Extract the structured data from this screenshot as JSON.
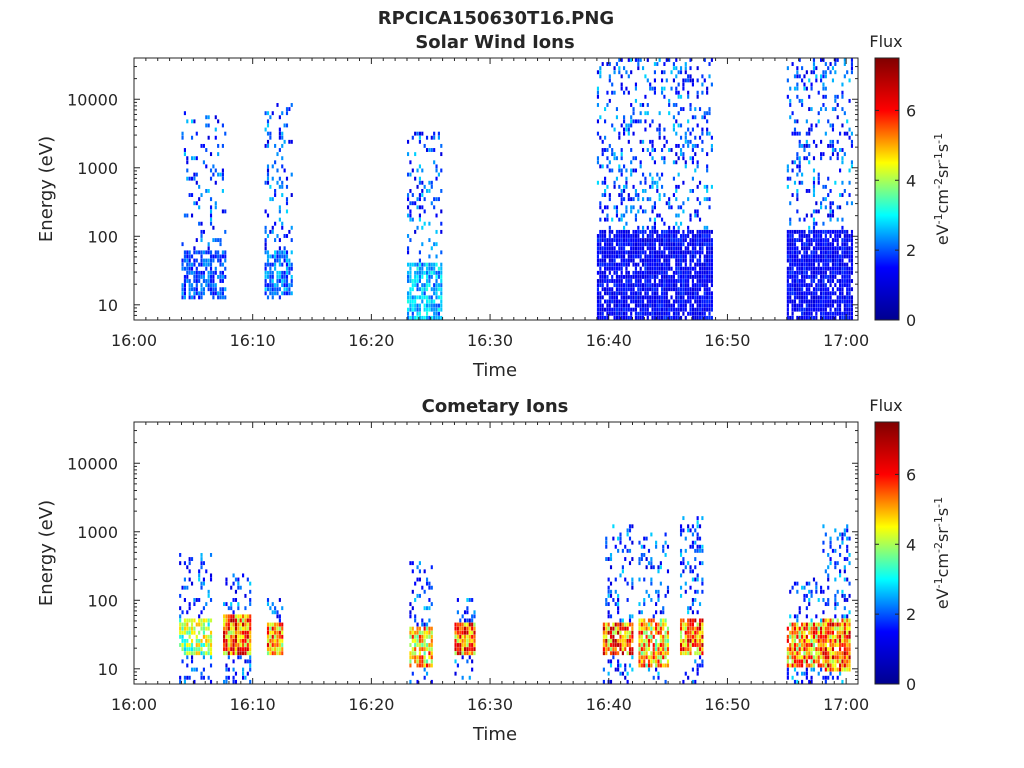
{
  "figure": {
    "filename": "RPCICA150630T16.PNG",
    "colorbar": {
      "label": "Flux",
      "unit_base": "eV",
      "unit_sup1": "-1",
      "unit_base2": "cm",
      "unit_sup2": "-2",
      "unit_base3": "sr",
      "unit_sup3": "-1",
      "unit_base4": "s",
      "unit_sup4": "-1",
      "ticks": [
        "0",
        "2",
        "4",
        "6"
      ],
      "range": [
        0,
        7.5
      ],
      "colormap": "jet",
      "colors": [
        "#00008f",
        "#0000ff",
        "#00ffff",
        "#ffff00",
        "#ff0000",
        "#800000"
      ]
    }
  },
  "chart_data": [
    {
      "type": "heatmap",
      "title": "Solar Wind Ions",
      "xlabel": "Time",
      "ylabel": "Energy (eV)",
      "x_ticks": [
        "16:00",
        "16:10",
        "16:20",
        "16:30",
        "16:40",
        "16:50",
        "17:00"
      ],
      "y_ticks": [
        "10",
        "100",
        "1000",
        "10000"
      ],
      "y_scale": "log",
      "ylim": [
        6,
        40000
      ],
      "xlim_minutes": [
        0,
        61
      ],
      "bursts": [
        {
          "t0": 4.0,
          "t1": 7.8,
          "emin": 12,
          "emax": 6000,
          "core_min": 10,
          "core_max": 60,
          "peak": 2.5,
          "density": 0.45
        },
        {
          "t0": 11.0,
          "t1": 13.2,
          "emin": 12,
          "emax": 8500,
          "core_min": 12,
          "core_max": 60,
          "peak": 2.8,
          "density": 0.5
        },
        {
          "t0": 23.0,
          "t1": 25.8,
          "emin": 6,
          "emax": 3000,
          "core_min": 6,
          "core_max": 40,
          "peak": 3.2,
          "density": 0.5
        },
        {
          "t0": 39.0,
          "t1": 48.8,
          "emin": 6,
          "emax": 38000,
          "core_min": 6,
          "core_max": 120,
          "peak": 1.8,
          "density": 0.6
        },
        {
          "t0": 55.0,
          "t1": 60.5,
          "emin": 6,
          "emax": 38000,
          "core_min": 6,
          "core_max": 120,
          "peak": 1.8,
          "density": 0.6
        }
      ]
    },
    {
      "type": "heatmap",
      "title": "Cometary Ions",
      "xlabel": "Time",
      "ylabel": "Energy (eV)",
      "x_ticks": [
        "16:00",
        "16:10",
        "16:20",
        "16:30",
        "16:40",
        "16:50",
        "17:00"
      ],
      "y_ticks": [
        "10",
        "100",
        "1000",
        "10000"
      ],
      "y_scale": "log",
      "ylim": [
        6,
        40000
      ],
      "xlim_minutes": [
        0,
        61
      ],
      "bursts": [
        {
          "t0": 3.8,
          "t1": 6.5,
          "emin": 6,
          "emax": 450,
          "core_min": 15,
          "core_max": 50,
          "peak": 5.0,
          "density": 0.55
        },
        {
          "t0": 7.5,
          "t1": 9.8,
          "emin": 6,
          "emax": 220,
          "core_min": 15,
          "core_max": 60,
          "peak": 7.0,
          "density": 0.75
        },
        {
          "t0": 11.2,
          "t1": 12.5,
          "emin": 15,
          "emax": 100,
          "core_min": 15,
          "core_max": 45,
          "peak": 6.5,
          "density": 0.75
        },
        {
          "t0": 23.2,
          "t1": 25.0,
          "emin": 6,
          "emax": 350,
          "core_min": 10,
          "core_max": 40,
          "peak": 6.2,
          "density": 0.6
        },
        {
          "t0": 27.0,
          "t1": 28.6,
          "emin": 6,
          "emax": 100,
          "core_min": 15,
          "core_max": 45,
          "peak": 7.0,
          "density": 0.75
        },
        {
          "t0": 39.5,
          "t1": 42.0,
          "emin": 6,
          "emax": 1200,
          "core_min": 15,
          "core_max": 45,
          "peak": 7.0,
          "density": 0.65
        },
        {
          "t0": 42.5,
          "t1": 45.0,
          "emin": 6,
          "emax": 900,
          "core_min": 10,
          "core_max": 50,
          "peak": 6.2,
          "density": 0.6
        },
        {
          "t0": 46.0,
          "t1": 48.0,
          "emin": 6,
          "emax": 1600,
          "core_min": 15,
          "core_max": 50,
          "peak": 7.0,
          "density": 0.65
        },
        {
          "t0": 55.0,
          "t1": 58.0,
          "emin": 6,
          "emax": 200,
          "core_min": 10,
          "core_max": 45,
          "peak": 6.5,
          "density": 0.65
        },
        {
          "t0": 58.0,
          "t1": 60.3,
          "emin": 6,
          "emax": 1200,
          "core_min": 8,
          "core_max": 50,
          "peak": 7.0,
          "density": 0.7
        }
      ]
    }
  ]
}
